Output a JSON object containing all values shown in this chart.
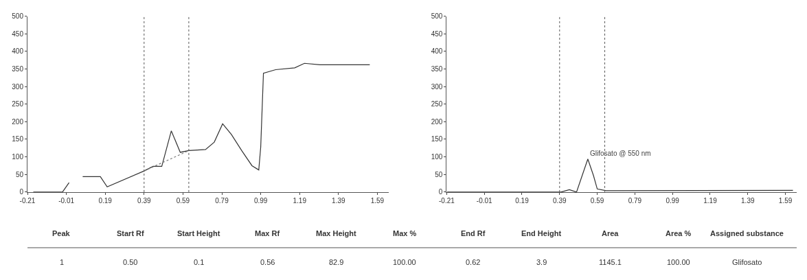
{
  "chart_data": [
    {
      "type": "line",
      "xlim": [
        -0.21,
        1.65
      ],
      "ylim": [
        0,
        500
      ],
      "xticks": [
        -0.21,
        -0.01,
        0.19,
        0.39,
        0.59,
        0.79,
        0.99,
        1.19,
        1.39,
        1.59
      ],
      "yticks": [
        0,
        50,
        100,
        150,
        200,
        250,
        300,
        350,
        400,
        450,
        500
      ],
      "series": [
        {
          "color": "#333333",
          "x": [
            -0.18,
            -0.03,
            0.004,
            null,
            0.074,
            0.165,
            0.2,
            0.39,
            0.436,
            0.481,
            0.53,
            0.576,
            0.62,
            0.706,
            0.751,
            0.794,
            0.839,
            0.892,
            0.945,
            0.98,
            0.99,
            1.004,
            1.067,
            1.165,
            1.215,
            1.295,
            1.551
          ],
          "values": [
            0,
            0,
            27,
            null,
            44,
            44,
            15,
            60,
            73,
            73,
            174,
            113,
            118,
            121,
            142,
            194,
            164,
            118,
            75,
            63,
            128,
            338,
            348,
            353,
            366,
            362,
            362
          ]
        },
        {
          "color": "#777777",
          "line_style": "dotted",
          "x": [
            0.39,
            0.62
          ],
          "values": [
            60,
            118
          ]
        }
      ],
      "ref_lines": [
        {
          "axis": "x",
          "value": 0.39,
          "line_style": "dotted"
        },
        {
          "axis": "x",
          "value": 0.62,
          "line_style": "dotted"
        }
      ],
      "marker": "none"
    },
    {
      "type": "line",
      "xlim": [
        -0.21,
        1.65
      ],
      "ylim": [
        0,
        500
      ],
      "xticks": [
        -0.21,
        -0.01,
        0.19,
        0.39,
        0.59,
        0.79,
        0.99,
        1.19,
        1.39,
        1.59
      ],
      "yticks": [
        0,
        50,
        100,
        150,
        200,
        250,
        300,
        350,
        400,
        450,
        500
      ],
      "series": [
        {
          "color": "#333333",
          "x": [
            -0.208,
            0.323,
            0.397,
            0.442,
            0.48,
            0.51,
            0.54,
            0.57,
            0.59,
            0.637,
            1.63
          ],
          "values": [
            0,
            0,
            0,
            7,
            0,
            47,
            94,
            47,
            9,
            4,
            5
          ]
        }
      ],
      "ref_lines": [
        {
          "axis": "x",
          "value": 0.39,
          "line_style": "dotted"
        },
        {
          "axis": "x",
          "value": 0.63,
          "line_style": "dotted"
        }
      ],
      "annotations": [
        "Glifosato @ 550 nm"
      ],
      "marker": "none"
    },
    {
      "type": "other",
      "annotations": [
        "Peak",
        "Start Rf",
        "Start Height",
        "Max Rf",
        "Max Height",
        "Max %",
        "End Rf",
        "End Height",
        "Area",
        "Area %",
        "Assigned substance",
        "1",
        "0.50",
        "0.1",
        "0.56",
        "82.9",
        "100.00",
        "0.62",
        "3.9",
        "1145.1",
        "100.00",
        "Glifosato"
      ]
    }
  ]
}
